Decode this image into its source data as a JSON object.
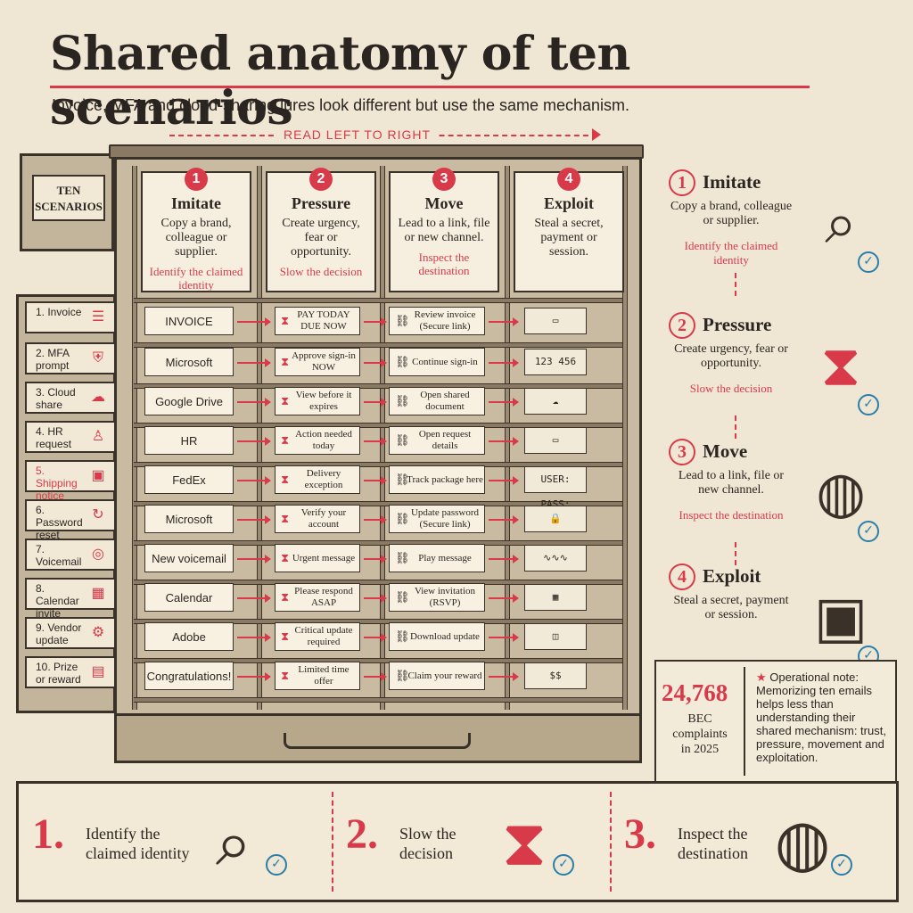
{
  "title": "Shared anatomy of ten scenarios",
  "subtitle": "Invoice, MFA and cloud-sharing lures look different but use the same mechanism.",
  "read_hint": "READ LEFT TO RIGHT",
  "side_label": "TEN SCENARIOS",
  "columns": [
    {
      "num": "1",
      "heading": "Imitate",
      "body": "Copy a brand, colleague or supplier.",
      "action": "Identify the claimed identity"
    },
    {
      "num": "2",
      "heading": "Pressure",
      "body": "Create urgency, fear or opportunity.",
      "action": "Slow the decision"
    },
    {
      "num": "3",
      "heading": "Move",
      "body": "Lead to a link, file or new channel.",
      "action": "Inspect the destination"
    },
    {
      "num": "4",
      "heading": "Exploit",
      "body": "Steal a secret, payment or session.",
      "action": ""
    }
  ],
  "scenarios": [
    {
      "label": "1. Invoice",
      "icon": "invoice-icon",
      "glyph": "☰"
    },
    {
      "label": "2. MFA prompt",
      "icon": "shield-icon",
      "glyph": "⛨"
    },
    {
      "label": "3. Cloud share",
      "icon": "cloud-icon",
      "glyph": "☁"
    },
    {
      "label": "4. HR request",
      "icon": "person-icon",
      "glyph": "♙"
    },
    {
      "label": "5. Shipping notice",
      "icon": "package-icon",
      "glyph": "▣"
    },
    {
      "label": "6. Password reset",
      "icon": "refresh-icon",
      "glyph": "↻"
    },
    {
      "label": "7. Voicemail",
      "icon": "voicemail-icon",
      "glyph": "◎"
    },
    {
      "label": "8. Calendar invite",
      "icon": "calendar-icon",
      "glyph": "▦"
    },
    {
      "label": "9. Vendor update",
      "icon": "gear-icon",
      "glyph": "⚙"
    },
    {
      "label": "10. Prize or reward",
      "icon": "gift-icon",
      "glyph": "▤"
    }
  ],
  "imitate_tags": [
    "INVOICE",
    "Microsoft",
    "Google Drive",
    "HR",
    "FedEx",
    "Microsoft",
    "New voicemail",
    "Calendar",
    "Adobe",
    "Congratulations!"
  ],
  "pressure_tags": [
    "PAY TODAY DUE NOW",
    "Approve sign-in NOW",
    "View before it expires",
    "Action needed today",
    "Delivery exception",
    "Verify your account",
    "Urgent message",
    "Please respond ASAP",
    "Critical update required",
    "Limited time offer"
  ],
  "move_tags": [
    "Review invoice (Secure link)",
    "Continue sign-in",
    "Open shared document",
    "Open request details",
    "Track package here",
    "Update password (Secure link)",
    "Play message",
    "View invitation (RSVP)",
    "Download update",
    "Claim your reward"
  ],
  "exploit_items": [
    {
      "icon": "credit-card-icon",
      "text": ""
    },
    {
      "icon": "code-field-icon",
      "text": "123 456"
    },
    {
      "icon": "cloud-upload-icon",
      "text": ""
    },
    {
      "icon": "id-card-icon",
      "text": ""
    },
    {
      "icon": "login-form-icon",
      "text": "USER: PASS:"
    },
    {
      "icon": "padlock-icon",
      "text": ""
    },
    {
      "icon": "waveform-icon",
      "text": ""
    },
    {
      "icon": "calendar-exploit-icon",
      "text": ""
    },
    {
      "icon": "open-box-icon",
      "text": ""
    },
    {
      "icon": "cash-stack-icon",
      "text": ""
    }
  ],
  "right_steps": [
    {
      "num": "1",
      "heading": "Imitate",
      "body": "Copy a brand, colleague or supplier.",
      "action": "Identify the claimed identity",
      "icon": "magnifier-id-icon"
    },
    {
      "num": "2",
      "heading": "Pressure",
      "body": "Create urgency, fear or opportunity.",
      "action": "Slow the decision",
      "icon": "hourglass-icon"
    },
    {
      "num": "3",
      "heading": "Move",
      "body": "Lead to a link, file or new channel.",
      "action": "Inspect the destination",
      "icon": "globe-cursor-icon"
    },
    {
      "num": "4",
      "heading": "Exploit",
      "body": "Steal a secret, payment or session.",
      "action": "",
      "icon": "open-safe-icon"
    }
  ],
  "stat": {
    "value": "24,768",
    "label": "BEC complaints in 2025"
  },
  "note": {
    "prefix": "Operational note:",
    "body": "Memorizing ten emails helps less than understanding their shared mechanism: trust, pressure, movement and exploitation."
  },
  "bottom_steps": [
    {
      "num": "1.",
      "text": "Identify the claimed identity",
      "icon": "magnifier-id-icon"
    },
    {
      "num": "2.",
      "text": "Slow the decision",
      "icon": "hourglass-icon"
    },
    {
      "num": "3.",
      "text": "Inspect the destination",
      "icon": "globe-cursor-icon"
    }
  ],
  "colors": {
    "accent": "#d83a4a",
    "check": "#2a7fa8",
    "paper": "#efe6d4",
    "ink": "#2a2520",
    "wood": "#c9bba2"
  }
}
